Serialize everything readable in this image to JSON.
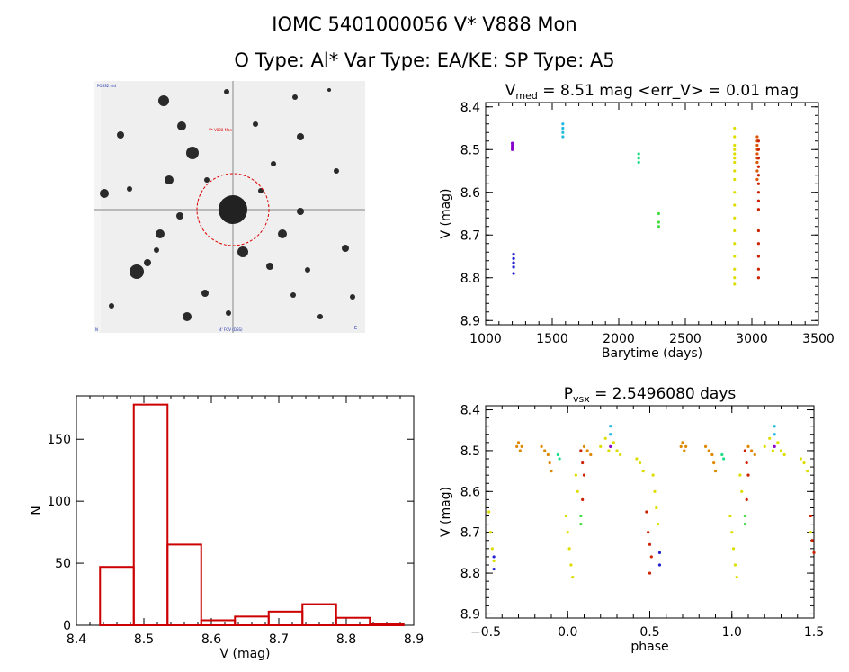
{
  "header": {
    "line1": "IOMC 5401000056     V* V888 Mon",
    "line2": "O Type: Al*   Var Type: EA/KE:   SP Type: A5"
  },
  "image_panel": {
    "label_top_left": "POSS2 red",
    "label_target": "V* V888 Mon",
    "label_bottom_left": "N",
    "label_bottom_center": "4' FOV (DSS)",
    "label_bottom_right": "E"
  },
  "chart_data": [
    {
      "type": "scatter",
      "title": "V_med = 8.51 mag <err_V> = 0.01 mag",
      "title_main": "V",
      "title_sub": "med",
      "title_rest": " = 8.51 mag <err_V> = 0.01 mag",
      "xlabel": "Barytime (days)",
      "ylabel": "V (mag)",
      "xlim": [
        1000,
        3500
      ],
      "ylim": [
        8.91,
        8.39
      ],
      "y_inverted": true,
      "xticks": [
        1000,
        1500,
        2000,
        2500,
        3000,
        3500
      ],
      "yticks": [
        8.4,
        8.5,
        8.6,
        8.7,
        8.8,
        8.9
      ],
      "series": [
        {
          "color": "#8800cc",
          "points": [
            [
              1200,
              8.485
            ],
            [
              1200,
              8.49
            ],
            [
              1200,
              8.495
            ],
            [
              1200,
              8.5
            ]
          ]
        },
        {
          "color": "#2222cc",
          "points": [
            [
              1210,
              8.745
            ],
            [
              1210,
              8.755
            ],
            [
              1210,
              8.765
            ],
            [
              1210,
              8.775
            ],
            [
              1210,
              8.79
            ]
          ]
        },
        {
          "color": "#22bbdd",
          "points": [
            [
              1580,
              8.44
            ],
            [
              1580,
              8.45
            ],
            [
              1580,
              8.46
            ],
            [
              1580,
              8.47
            ]
          ]
        },
        {
          "color": "#22dd88",
          "points": [
            [
              2150,
              8.51
            ],
            [
              2150,
              8.52
            ],
            [
              2150,
              8.53
            ]
          ]
        },
        {
          "color": "#44dd44",
          "points": [
            [
              2300,
              8.65
            ],
            [
              2300,
              8.67
            ],
            [
              2300,
              8.68
            ]
          ]
        },
        {
          "color": "#dddd00",
          "points": [
            [
              2870,
              8.45
            ],
            [
              2870,
              8.47
            ],
            [
              2870,
              8.49
            ],
            [
              2870,
              8.5
            ],
            [
              2870,
              8.51
            ],
            [
              2870,
              8.52
            ],
            [
              2870,
              8.53
            ],
            [
              2870,
              8.55
            ],
            [
              2870,
              8.57
            ],
            [
              2870,
              8.6
            ],
            [
              2870,
              8.63
            ],
            [
              2870,
              8.66
            ],
            [
              2870,
              8.69
            ],
            [
              2870,
              8.72
            ],
            [
              2870,
              8.75
            ],
            [
              2870,
              8.78
            ],
            [
              2870,
              8.8
            ],
            [
              2870,
              8.815
            ]
          ]
        },
        {
          "color": "#dd5500",
          "points": [
            [
              3040,
              8.47
            ],
            [
              3040,
              8.48
            ],
            [
              3040,
              8.49
            ],
            [
              3040,
              8.5
            ],
            [
              3040,
              8.51
            ],
            [
              3040,
              8.52
            ],
            [
              3040,
              8.53
            ],
            [
              3040,
              8.55
            ],
            [
              3040,
              8.57
            ]
          ]
        },
        {
          "color": "#cc2200",
          "points": [
            [
              3050,
              8.48
            ],
            [
              3050,
              8.5
            ],
            [
              3050,
              8.52
            ],
            [
              3050,
              8.54
            ],
            [
              3050,
              8.56
            ],
            [
              3050,
              8.58
            ],
            [
              3050,
              8.6
            ],
            [
              3050,
              8.62
            ],
            [
              3050,
              8.64
            ],
            [
              3050,
              8.69
            ],
            [
              3050,
              8.72
            ],
            [
              3050,
              8.75
            ],
            [
              3050,
              8.78
            ],
            [
              3050,
              8.8
            ]
          ]
        }
      ]
    },
    {
      "type": "bar",
      "title": "",
      "xlabel": "V (mag)",
      "ylabel": "N",
      "xlim": [
        8.4,
        8.9
      ],
      "ylim": [
        0,
        185
      ],
      "xticks": [
        8.4,
        8.5,
        8.6,
        8.7,
        8.8,
        8.9
      ],
      "yticks": [
        0,
        50,
        100,
        150
      ],
      "bin_width": 0.05,
      "bin_starts": [
        8.435,
        8.485,
        8.535,
        8.585,
        8.635,
        8.685,
        8.735,
        8.785,
        8.835,
        8.885
      ],
      "bins": [
        {
          "x0": 8.435,
          "x1": 8.485,
          "count": 47
        },
        {
          "x0": 8.485,
          "x1": 8.535,
          "count": 178
        },
        {
          "x0": 8.535,
          "x1": 8.585,
          "count": 65
        },
        {
          "x0": 8.585,
          "x1": 8.635,
          "count": 4
        },
        {
          "x0": 8.635,
          "x1": 8.685,
          "count": 7
        },
        {
          "x0": 8.685,
          "x1": 8.735,
          "count": 11
        },
        {
          "x0": 8.735,
          "x1": 8.785,
          "count": 17
        },
        {
          "x0": 8.785,
          "x1": 8.835,
          "count": 6
        },
        {
          "x0": 8.835,
          "x1": 8.885,
          "count": 1
        }
      ],
      "color": "#cc0000"
    },
    {
      "type": "scatter",
      "title": "P_vsx = 2.5496080 days",
      "title_main": "P",
      "title_sub": "vsx",
      "title_rest": " = 2.5496080 days",
      "xlabel": "phase",
      "ylabel": "V (mag)",
      "xlim": [
        -0.5,
        1.5
      ],
      "ylim": [
        8.91,
        8.39
      ],
      "y_inverted": true,
      "xticks": [
        -0.5,
        0.0,
        0.5,
        1.0,
        1.5
      ],
      "xtick_labels": [
        "−0.5",
        "0.0",
        "0.5",
        "1.0",
        "1.5"
      ],
      "yticks": [
        8.4,
        8.5,
        8.6,
        8.7,
        8.8,
        8.9
      ],
      "series": [
        {
          "color": "#dd8800",
          "points": [
            [
              -0.31,
              8.49
            ],
            [
              -0.29,
              8.5
            ],
            [
              -0.3,
              8.48
            ],
            [
              -0.28,
              8.49
            ],
            [
              -0.16,
              8.49
            ],
            [
              -0.14,
              8.5
            ],
            [
              -0.12,
              8.51
            ],
            [
              -0.11,
              8.53
            ],
            [
              -0.1,
              8.55
            ],
            [
              0.1,
              8.49
            ],
            [
              0.12,
              8.5
            ],
            [
              0.14,
              8.51
            ],
            [
              0.69,
              8.49
            ],
            [
              0.71,
              8.5
            ],
            [
              0.7,
              8.48
            ],
            [
              0.72,
              8.49
            ],
            [
              0.84,
              8.49
            ],
            [
              0.86,
              8.5
            ],
            [
              0.88,
              8.51
            ],
            [
              0.89,
              8.53
            ],
            [
              0.9,
              8.55
            ],
            [
              1.1,
              8.49
            ],
            [
              1.12,
              8.5
            ],
            [
              1.14,
              8.51
            ]
          ]
        },
        {
          "color": "#dddd00",
          "points": [
            [
              -0.48,
              8.65
            ],
            [
              -0.47,
              8.7
            ],
            [
              -0.46,
              8.74
            ],
            [
              -0.45,
              8.77
            ],
            [
              -0.01,
              8.66
            ],
            [
              0.0,
              8.7
            ],
            [
              0.01,
              8.74
            ],
            [
              0.02,
              8.78
            ],
            [
              0.03,
              8.81
            ],
            [
              0.05,
              8.56
            ],
            [
              0.06,
              8.6
            ],
            [
              0.2,
              8.49
            ],
            [
              0.23,
              8.47
            ],
            [
              0.25,
              8.5
            ],
            [
              0.28,
              8.48
            ],
            [
              0.3,
              8.5
            ],
            [
              0.32,
              8.51
            ],
            [
              0.42,
              8.52
            ],
            [
              0.44,
              8.53
            ],
            [
              0.46,
              8.55
            ],
            [
              0.52,
              8.56
            ],
            [
              0.53,
              8.6
            ],
            [
              0.54,
              8.64
            ],
            [
              0.55,
              8.68
            ],
            [
              0.99,
              8.66
            ],
            [
              1.0,
              8.7
            ],
            [
              1.01,
              8.74
            ],
            [
              1.02,
              8.78
            ],
            [
              1.03,
              8.81
            ],
            [
              1.05,
              8.56
            ],
            [
              1.06,
              8.6
            ],
            [
              1.2,
              8.49
            ],
            [
              1.23,
              8.47
            ],
            [
              1.25,
              8.5
            ],
            [
              1.28,
              8.48
            ],
            [
              1.3,
              8.5
            ],
            [
              1.32,
              8.51
            ],
            [
              1.42,
              8.52
            ],
            [
              1.44,
              8.53
            ],
            [
              1.46,
              8.55
            ],
            [
              1.48,
              8.7
            ]
          ]
        },
        {
          "color": "#cc2200",
          "points": [
            [
              0.08,
              8.5
            ],
            [
              0.09,
              8.53
            ],
            [
              0.1,
              8.56
            ],
            [
              0.09,
              8.62
            ],
            [
              0.48,
              8.65
            ],
            [
              0.49,
              8.7
            ],
            [
              0.5,
              8.73
            ],
            [
              0.51,
              8.76
            ],
            [
              0.5,
              8.8
            ],
            [
              1.08,
              8.5
            ],
            [
              1.09,
              8.53
            ],
            [
              1.1,
              8.56
            ],
            [
              1.09,
              8.62
            ],
            [
              1.48,
              8.66
            ],
            [
              1.49,
              8.72
            ],
            [
              1.5,
              8.75
            ]
          ]
        },
        {
          "color": "#22dd88",
          "points": [
            [
              -0.06,
              8.51
            ],
            [
              -0.05,
              8.52
            ],
            [
              0.94,
              8.51
            ],
            [
              0.95,
              8.52
            ]
          ]
        },
        {
          "color": "#44dd44",
          "points": [
            [
              0.08,
              8.66
            ],
            [
              0.08,
              8.68
            ],
            [
              1.08,
              8.66
            ],
            [
              1.08,
              8.68
            ]
          ]
        },
        {
          "color": "#22bbdd",
          "points": [
            [
              0.26,
              8.44
            ],
            [
              0.26,
              8.46
            ],
            [
              1.26,
              8.44
            ],
            [
              1.26,
              8.46
            ]
          ]
        },
        {
          "color": "#2222cc",
          "points": [
            [
              -0.45,
              8.76
            ],
            [
              -0.45,
              8.79
            ],
            [
              0.56,
              8.75
            ],
            [
              0.56,
              8.78
            ]
          ]
        },
        {
          "color": "#8800cc",
          "points": [
            [
              0.26,
              8.49
            ],
            [
              1.26,
              8.49
            ]
          ]
        }
      ]
    }
  ]
}
